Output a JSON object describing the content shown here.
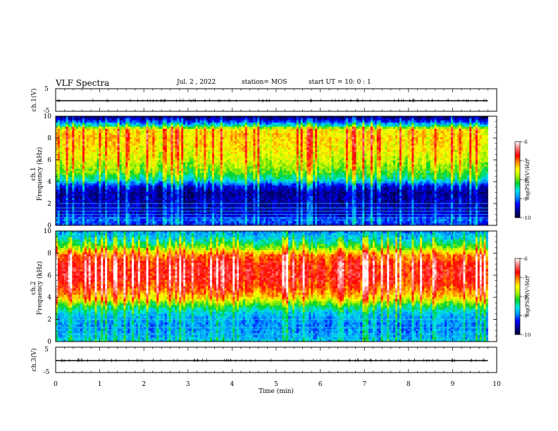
{
  "header": {
    "title": "VLF Spectra",
    "date": "Jul.  2  , 2022",
    "station": "station= MOS",
    "start_ut": "start  UT  =   10: 0   : 1"
  },
  "colors": {
    "spectrogram_scale": [
      "#000030",
      "#00008b",
      "#0000ff",
      "#0096ff",
      "#00e6e6",
      "#00d22a",
      "#aaf000",
      "#ffff00",
      "#ff8c00",
      "#ff0000",
      "#ff7070",
      "#ffffff"
    ]
  },
  "chart_data": [
    {
      "type": "line",
      "title": "",
      "ylabel": "ch.1(V)",
      "xlabel": "",
      "xlim": [
        0,
        10
      ],
      "ylim": [
        -5,
        5
      ],
      "yticks": [
        "5",
        "-5"
      ],
      "series": [
        {
          "x": [
            0,
            9.8
          ],
          "y": [
            0,
            0
          ]
        }
      ]
    },
    {
      "type": "heatmap",
      "ylabel": "ch.1\nFrequency (kHz)",
      "xlim": [
        0,
        10
      ],
      "ylim": [
        0,
        10
      ],
      "yticks": [
        "0",
        "2",
        "4",
        "6",
        "8",
        "10"
      ],
      "data_end_min": 9.8,
      "colorbar": {
        "label": "log(PSD)(V²/Hz)",
        "range": [
          -10,
          -6
        ],
        "ticks": [
          "-6",
          "-7",
          "-8",
          "-9",
          "-10"
        ]
      },
      "frequency_profile": [
        {
          "f": 0.0,
          "v": -9.2
        },
        {
          "f": 0.5,
          "v": -9.0
        },
        {
          "f": 1.0,
          "v": -9.4
        },
        {
          "f": 2.0,
          "v": -9.5
        },
        {
          "f": 3.0,
          "v": -9.6
        },
        {
          "f": 3.6,
          "v": -9.3
        },
        {
          "f": 4.2,
          "v": -8.4
        },
        {
          "f": 5.0,
          "v": -7.9
        },
        {
          "f": 6.0,
          "v": -7.6
        },
        {
          "f": 7.0,
          "v": -7.4
        },
        {
          "f": 8.0,
          "v": -7.3
        },
        {
          "f": 8.8,
          "v": -7.4
        },
        {
          "f": 9.2,
          "v": -8.6
        },
        {
          "f": 9.6,
          "v": -9.3
        },
        {
          "f": 10.0,
          "v": -9.8
        }
      ],
      "narrowband_lines_khz": [
        0.7,
        1.0,
        1.3,
        1.6,
        2.0
      ]
    },
    {
      "type": "heatmap",
      "ylabel": "ch.2\nFrequency (kHz)",
      "xlim": [
        0,
        10
      ],
      "ylim": [
        0,
        10
      ],
      "yticks": [
        "0",
        "2",
        "4",
        "6",
        "8",
        "10"
      ],
      "data_end_min": 9.8,
      "colorbar": {
        "label": "log(PSD)(V²/Hz)",
        "range": [
          -10,
          -6
        ],
        "ticks": [
          "-6",
          "-7",
          "-8",
          "-9",
          "-10"
        ]
      },
      "frequency_profile": [
        {
          "f": 0.0,
          "v": -8.6
        },
        {
          "f": 0.6,
          "v": -8.8
        },
        {
          "f": 1.5,
          "v": -8.9
        },
        {
          "f": 2.5,
          "v": -8.7
        },
        {
          "f": 3.2,
          "v": -8.2
        },
        {
          "f": 4.0,
          "v": -7.3
        },
        {
          "f": 5.0,
          "v": -6.8
        },
        {
          "f": 6.0,
          "v": -6.6
        },
        {
          "f": 7.0,
          "v": -6.7
        },
        {
          "f": 7.8,
          "v": -7.0
        },
        {
          "f": 8.5,
          "v": -7.9
        },
        {
          "f": 9.2,
          "v": -8.5
        },
        {
          "f": 10.0,
          "v": -8.9
        }
      ],
      "narrowband_lines_khz": [
        0.7,
        1.3,
        2.0
      ]
    },
    {
      "type": "line",
      "ylabel": "ch.3(V)",
      "xlabel": "Time  (min)",
      "xlim": [
        0,
        10
      ],
      "ylim": [
        -5,
        5
      ],
      "xticks": [
        "0",
        "1",
        "2",
        "3",
        "4",
        "5",
        "6",
        "7",
        "8",
        "9",
        "10"
      ],
      "yticks": [
        "5",
        "-5"
      ],
      "series": [
        {
          "x": [
            0,
            9.8
          ],
          "y": [
            0,
            0
          ]
        }
      ]
    }
  ]
}
